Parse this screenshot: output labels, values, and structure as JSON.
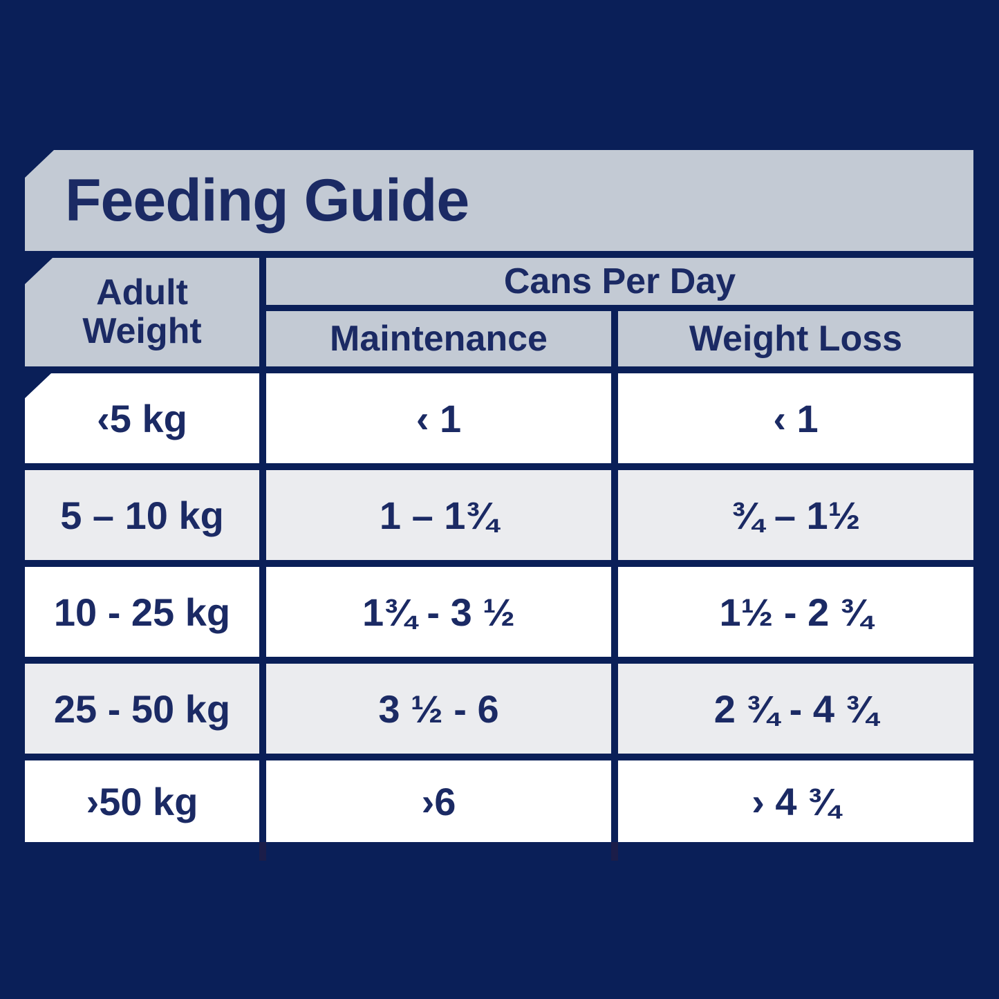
{
  "title": "Feeding Guide",
  "header": {
    "adult_weight": "Adult\nWeight",
    "group": "Cans Per Day",
    "maintenance": "Maintenance",
    "weight_loss": "Weight Loss"
  },
  "rows": [
    {
      "weight": "‹5 kg",
      "maintenance": "‹ 1",
      "weight_loss": "‹ 1"
    },
    {
      "weight": "5 – 10 kg",
      "maintenance": "1 – 1¾",
      "weight_loss": "¾ – 1½"
    },
    {
      "weight": "10 - 25 kg",
      "maintenance": "1¾ - 3 ½",
      "weight_loss": "1½ - 2 ¾"
    },
    {
      "weight": "25 - 50 kg",
      "maintenance": "3 ½ - 6",
      "weight_loss": "2 ¾ - 4 ¾"
    },
    {
      "weight": "›50 kg",
      "maintenance": "›6",
      "weight_loss": "› 4 ¾"
    }
  ],
  "colors": {
    "background": "#0A1F58",
    "panel": "#C3CAD4",
    "row": "#FFFFFF",
    "row_alt": "#EBECEF",
    "text": "#1B2A64"
  },
  "chart_data": {
    "type": "table",
    "title": "Feeding Guide",
    "column_group": {
      "label": "Cans Per Day",
      "spans": [
        "Maintenance",
        "Weight Loss"
      ]
    },
    "columns": [
      "Adult Weight",
      "Maintenance",
      "Weight Loss"
    ],
    "rows": [
      [
        "‹5 kg",
        "‹ 1",
        "‹ 1"
      ],
      [
        "5 – 10 kg",
        "1 – 1¾",
        "¾ – 1½"
      ],
      [
        "10 - 25 kg",
        "1¾ - 3 ½",
        "1½ - 2 ¾"
      ],
      [
        "25 - 50 kg",
        "3 ½ - 6",
        "2 ¾ - 4 ¾"
      ],
      [
        "›50 kg",
        "›6",
        "› 4 ¾"
      ]
    ],
    "layout_hints": {
      "grid": "navy gaps between cells act as borders",
      "row_striping": [
        "white",
        "light-gray"
      ],
      "corner_cuts": "diagonal top-left cut on banner, first header cell, first data cell"
    }
  }
}
